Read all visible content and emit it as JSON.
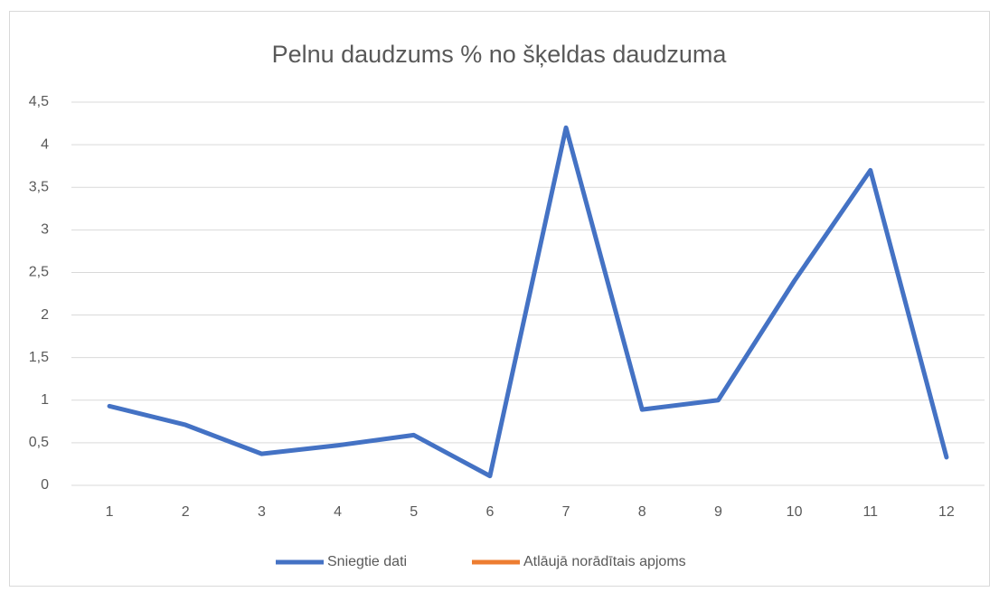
{
  "chart_data": {
    "type": "line",
    "title": "Pelnu daudzums % no šķeldas daudzuma",
    "categories": [
      "1",
      "2",
      "3",
      "4",
      "5",
      "6",
      "7",
      "8",
      "9",
      "10",
      "11",
      "12"
    ],
    "series": [
      {
        "name": "Sniegtie dati",
        "color": "#4472c4",
        "values": [
          0.93,
          0.71,
          0.37,
          0.47,
          0.59,
          0.11,
          4.2,
          0.89,
          1.0,
          2.4,
          3.7,
          0.33
        ]
      },
      {
        "name": "Atlāujā norādītais apjoms",
        "color": "#ed7d31",
        "values": [
          null,
          null,
          null,
          null,
          null,
          null,
          null,
          null,
          null,
          null,
          null,
          null
        ]
      }
    ],
    "ylim": [
      0,
      4.5
    ],
    "yticks": [
      0,
      {
        "value": 0.5,
        "label": "0,5"
      },
      1,
      {
        "value": 1.5,
        "label": "1,5"
      },
      2,
      {
        "value": 2.5,
        "label": "2,5"
      },
      3,
      {
        "value": 3.5,
        "label": "3,5"
      },
      4,
      {
        "value": 4.5,
        "label": "4,5"
      }
    ],
    "grid": true,
    "legend": "bottom"
  }
}
